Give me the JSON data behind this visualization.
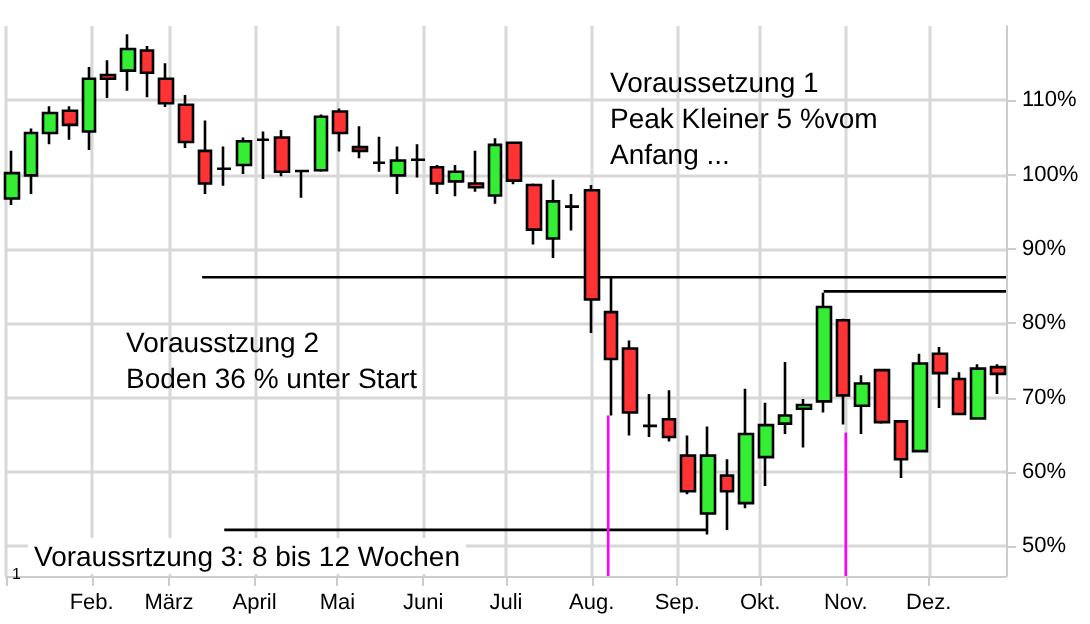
{
  "chart_data": {
    "type": "candlestick",
    "x": [
      "--01-03",
      "--01-10",
      "--01-17",
      "--01-24",
      "--01-31",
      "--02-07",
      "--02-14",
      "--02-21",
      "--02-28",
      "--03-07",
      "--03-14",
      "--03-21",
      "--03-28",
      "--04-04",
      "--04-11",
      "--04-18",
      "--04-25",
      "--05-02",
      "--05-09",
      "--05-16",
      "--05-23",
      "--05-30",
      "--06-06",
      "--06-13",
      "--06-20",
      "--06-27",
      "--07-04",
      "--07-11",
      "--07-18",
      "--07-25",
      "--08-01",
      "--08-08",
      "--08-15",
      "--08-22",
      "--08-29",
      "--09-05",
      "--09-12",
      "--09-19",
      "--09-26",
      "--10-03",
      "--10-10",
      "--10-17",
      "--10-24",
      "--10-31",
      "--11-07",
      "--11-14",
      "--11-21",
      "--11-28",
      "--12-05",
      "--12-12",
      "--12-19",
      "--12-26"
    ],
    "ohlc": [
      [
        96.8,
        103.2,
        95.9,
        100.2
      ],
      [
        99.9,
        106.2,
        97.4,
        105.6
      ],
      [
        105.6,
        109.2,
        104.1,
        108.3
      ],
      [
        108.6,
        109.2,
        104.7,
        106.7
      ],
      [
        105.8,
        114.5,
        103.3,
        112.9
      ],
      [
        113.4,
        115.4,
        110.3,
        112.9
      ],
      [
        114.0,
        118.9,
        111.3,
        116.9
      ],
      [
        116.7,
        117.3,
        110.4,
        113.7
      ],
      [
        112.9,
        115.0,
        109.1,
        109.6
      ],
      [
        109.4,
        110.7,
        103.6,
        104.4
      ],
      [
        103.2,
        107.3,
        97.4,
        98.8
      ],
      [
        100.8,
        103.8,
        98.5,
        100.8
      ],
      [
        101.3,
        105.0,
        100.1,
        104.5
      ],
      [
        104.7,
        105.8,
        99.4,
        104.7
      ],
      [
        105.0,
        106.0,
        99.8,
        100.4
      ],
      [
        100.5,
        100.5,
        96.9,
        100.5
      ],
      [
        100.6,
        108.1,
        100.4,
        107.8
      ],
      [
        108.5,
        108.9,
        103.1,
        105.6
      ],
      [
        103.7,
        106.5,
        102.2,
        103.2
      ],
      [
        101.6,
        105.1,
        100.4,
        101.6
      ],
      [
        99.9,
        103.8,
        97.4,
        101.9
      ],
      [
        102.0,
        104.1,
        99.6,
        102.0
      ],
      [
        101.0,
        101.3,
        97.4,
        98.8
      ],
      [
        99.1,
        101.3,
        97.1,
        100.4
      ],
      [
        98.8,
        103.2,
        97.7,
        98.3
      ],
      [
        97.2,
        104.9,
        96.1,
        104.0
      ],
      [
        104.3,
        104.3,
        98.7,
        99.2
      ],
      [
        98.6,
        98.8,
        90.6,
        92.6
      ],
      [
        91.4,
        99.3,
        88.8,
        96.4
      ],
      [
        95.7,
        97.4,
        92.5,
        95.7
      ],
      [
        97.9,
        98.6,
        78.7,
        83.2
      ],
      [
        81.5,
        86.1,
        67.6,
        75.2
      ],
      [
        76.6,
        77.7,
        64.9,
        68.0
      ],
      [
        66.2,
        70.5,
        64.7,
        66.2
      ],
      [
        67.1,
        71.0,
        64.1,
        64.7
      ],
      [
        62.2,
        64.9,
        57.0,
        57.4
      ],
      [
        54.4,
        66.1,
        51.6,
        62.2
      ],
      [
        59.5,
        61.7,
        52.2,
        57.4
      ],
      [
        55.8,
        71.2,
        55.1,
        65.1
      ],
      [
        62.0,
        69.3,
        58.1,
        66.3
      ],
      [
        66.5,
        74.8,
        65.1,
        67.6
      ],
      [
        68.5,
        69.8,
        63.3,
        69.0
      ],
      [
        69.5,
        84.1,
        68.0,
        82.2
      ],
      [
        80.4,
        80.6,
        66.4,
        70.3
      ],
      [
        68.9,
        73.0,
        65.1,
        71.9
      ],
      [
        73.7,
        73.9,
        66.5,
        66.7
      ],
      [
        66.8,
        66.8,
        59.2,
        61.7
      ],
      [
        62.8,
        75.9,
        62.6,
        74.6
      ],
      [
        75.9,
        76.8,
        68.6,
        73.3
      ],
      [
        72.5,
        73.4,
        67.7,
        67.8
      ],
      [
        67.2,
        74.5,
        67.2,
        73.9
      ],
      [
        74.1,
        74.5,
        70.5,
        73.2
      ]
    ],
    "colors": [
      "#33ee33",
      "#33ee33",
      "#33ee33",
      "#ff3333",
      "#33ee33",
      "#ff3333",
      "#33ee33",
      "#ff3333",
      "#ff3333",
      "#ff3333",
      "#ff3333",
      "#000000",
      "#33ee33",
      "#000000",
      "#ff3333",
      "#000000",
      "#33ee33",
      "#ff3333",
      "#ff3333",
      "#000000",
      "#33ee33",
      "#000000",
      "#ff3333",
      "#33ee33",
      "#ff3333",
      "#33ee33",
      "#ff3333",
      "#ff3333",
      "#33ee33",
      "#000000",
      "#ff3333",
      "#ff3333",
      "#ff3333",
      "#000000",
      "#ff3333",
      "#ff3333",
      "#33ee33",
      "#ff3333",
      "#33ee33",
      "#33ee33",
      "#33ee33",
      "#33ee33",
      "#33ee33",
      "#ff3333",
      "#33ee33",
      "#ff3333",
      "#ff3333",
      "#33ee33",
      "#ff3333",
      "#ff3333",
      "#33ee33",
      "#ff3333"
    ],
    "series": [
      {
        "type": "line",
        "color": "#000000",
        "x": [
          "--03-13",
          "--12-29"
        ],
        "values": [
          86.2,
          86.2
        ]
      },
      {
        "type": "line",
        "color": "#000000",
        "x": [
          "--10-24",
          "--12-29"
        ],
        "values": [
          84.3,
          84.3
        ]
      },
      {
        "type": "line",
        "color": "#000000",
        "x": [
          "--03-21",
          "--09-12"
        ],
        "values": [
          52.2,
          52.2
        ]
      },
      {
        "type": "line",
        "color": "#ff00ff",
        "x": [
          "--08-07",
          "--08-07"
        ],
        "values": [
          67.6,
          46
        ]
      },
      {
        "type": "line",
        "color": "#ff00ff",
        "x": [
          "--11-01",
          "--11-01"
        ],
        "values": [
          65.3,
          46
        ]
      }
    ],
    "xlim": [
      "--01-01",
      "--12-29"
    ],
    "xticks": [
      {
        "value": "--01-01",
        "label": null
      },
      {
        "value": "--02-01",
        "label": "Feb."
      },
      {
        "value": "--03-01",
        "label": "März"
      },
      {
        "value": "--04-01",
        "label": "April"
      },
      {
        "value": "--05-01",
        "label": "Mai"
      },
      {
        "value": "--06-01",
        "label": "Juni"
      },
      {
        "value": "--07-01",
        "label": "Juli"
      },
      {
        "value": "--08-01",
        "label": "Aug."
      },
      {
        "value": "--09-01",
        "label": "Sep."
      },
      {
        "value": "--10-01",
        "label": "Okt."
      },
      {
        "value": "--11-01",
        "label": "Nov."
      },
      {
        "value": "--12-01",
        "label": "Dez."
      }
    ],
    "ylim": [
      46,
      120
    ],
    "yticks": [
      {
        "value": 50,
        "label": "50%"
      },
      {
        "value": 60,
        "label": "60%"
      },
      {
        "value": 70,
        "label": "70%"
      },
      {
        "value": 80,
        "label": "80%"
      },
      {
        "value": 90,
        "label": "90%"
      },
      {
        "value": 100,
        "label": "100%"
      },
      {
        "value": 110,
        "label": "110%"
      }
    ],
    "annotations": [
      "Voraussetzung 1\nPeak Kleiner 5 %vom\nAnfang ...",
      "Vorausstzung 2\nBoden 36 % unter Start",
      "Voraussrtzung 3: 8 bis 12 Wochen",
      "1"
    ],
    "grid": true
  }
}
